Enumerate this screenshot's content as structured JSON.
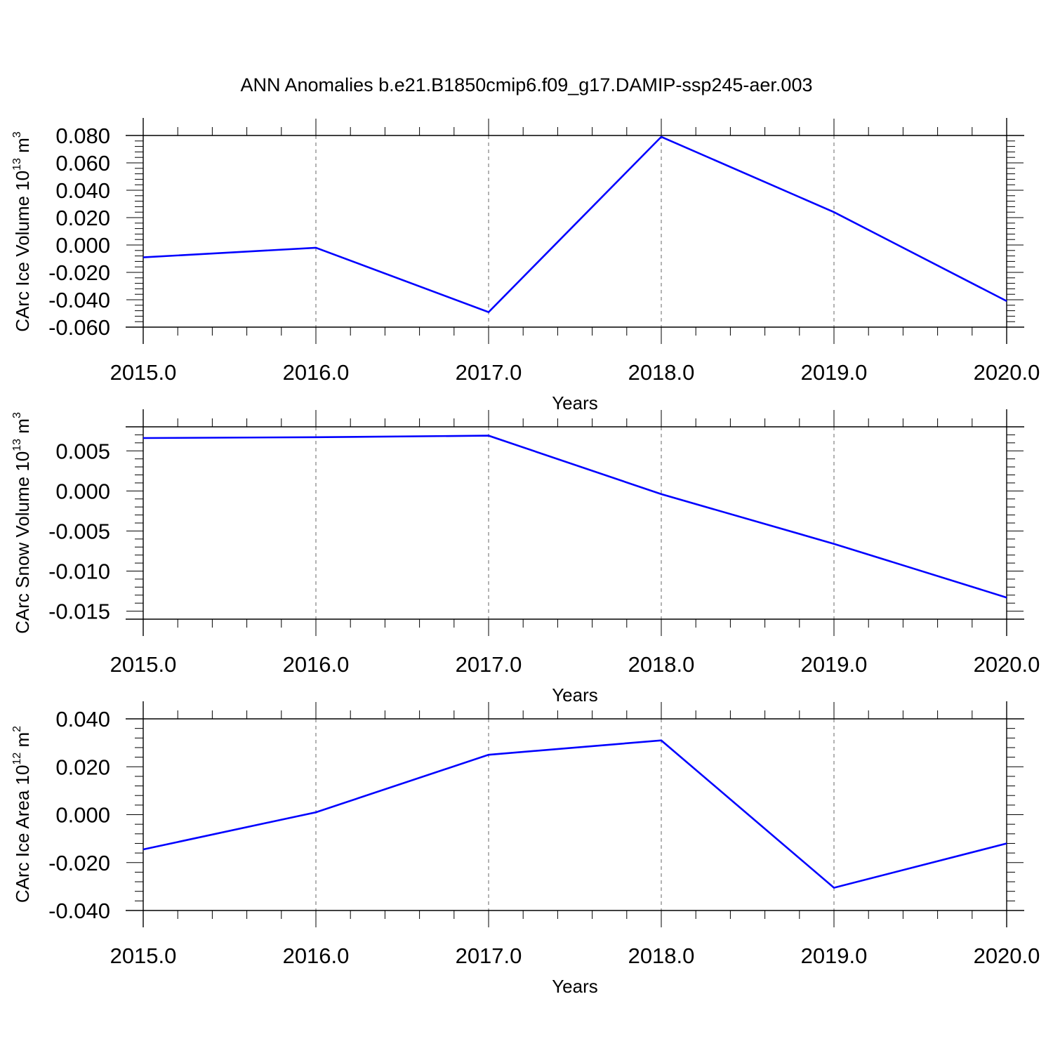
{
  "figure": {
    "title": "ANN Anomalies b.e21.B1850cmip6.f09_g17.DAMIP-ssp245-aer.003"
  },
  "colors": {
    "line": "#0000ff",
    "axis": "#000000",
    "grid": "#7f7f7f",
    "background": "#ffffff"
  },
  "chart_data": [
    {
      "type": "line",
      "title": "",
      "xlabel": "Years",
      "ylabel": {
        "base": "CArc Ice Volume 10",
        "exp": "13",
        "unit": " m",
        "unit_exp": "3"
      },
      "x": [
        2015,
        2016,
        2017,
        2018,
        2019,
        2020
      ],
      "xlim": [
        2015,
        2020
      ],
      "xticks": [
        2015,
        2016,
        2017,
        2018,
        2019,
        2020
      ],
      "xtick_labels": [
        "2015.0",
        "2016.0",
        "2017.0",
        "2018.0",
        "2019.0",
        "2020.0"
      ],
      "ylim": [
        -0.06,
        0.08
      ],
      "yticks": [
        -0.06,
        -0.04,
        -0.02,
        0.0,
        0.02,
        0.04,
        0.06,
        0.08
      ],
      "ytick_labels": [
        "-0.060",
        "-0.040",
        "-0.020",
        "0.000",
        "0.020",
        "0.040",
        "0.060",
        "0.080"
      ],
      "grid": "vertical dashed at major x ticks",
      "series": [
        {
          "values": [
            -0.009,
            -0.002,
            -0.049,
            0.079,
            0.024,
            -0.041
          ]
        }
      ]
    },
    {
      "type": "line",
      "title": "",
      "xlabel": "Years",
      "ylabel": {
        "base": "CArc Snow Volume 10",
        "exp": "13",
        "unit": " m",
        "unit_exp": "3"
      },
      "x": [
        2015,
        2016,
        2017,
        2018,
        2019,
        2020
      ],
      "xlim": [
        2015,
        2020
      ],
      "xticks": [
        2015,
        2016,
        2017,
        2018,
        2019,
        2020
      ],
      "xtick_labels": [
        "2015.0",
        "2016.0",
        "2017.0",
        "2018.0",
        "2019.0",
        "2020.0"
      ],
      "ylim": [
        -0.016,
        0.008
      ],
      "yticks": [
        -0.015,
        -0.01,
        -0.005,
        0.0,
        0.005
      ],
      "ytick_labels": [
        "-0.015",
        "-0.010",
        "-0.005",
        "0.000",
        "0.005"
      ],
      "grid": "vertical dashed at major x ticks",
      "series": [
        {
          "values": [
            0.0066,
            0.0067,
            0.0069,
            -0.0004,
            -0.0066,
            -0.0133
          ]
        }
      ]
    },
    {
      "type": "line",
      "title": "",
      "xlabel": "Years",
      "ylabel": {
        "base": "CArc Ice Area 10",
        "exp": "12",
        "unit": " m",
        "unit_exp": "2"
      },
      "x": [
        2015,
        2016,
        2017,
        2018,
        2019,
        2020
      ],
      "xlim": [
        2015,
        2020
      ],
      "xticks": [
        2015,
        2016,
        2017,
        2018,
        2019,
        2020
      ],
      "xtick_labels": [
        "2015.0",
        "2016.0",
        "2017.0",
        "2018.0",
        "2019.0",
        "2020.0"
      ],
      "ylim": [
        -0.04,
        0.04
      ],
      "yticks": [
        -0.04,
        -0.02,
        0.0,
        0.02,
        0.04
      ],
      "ytick_labels": [
        "-0.040",
        "-0.020",
        "0.000",
        "0.020",
        "0.040"
      ],
      "grid": "vertical dashed at major x ticks",
      "series": [
        {
          "values": [
            -0.0145,
            0.001,
            0.025,
            0.031,
            -0.0305,
            -0.012
          ]
        }
      ]
    }
  ]
}
